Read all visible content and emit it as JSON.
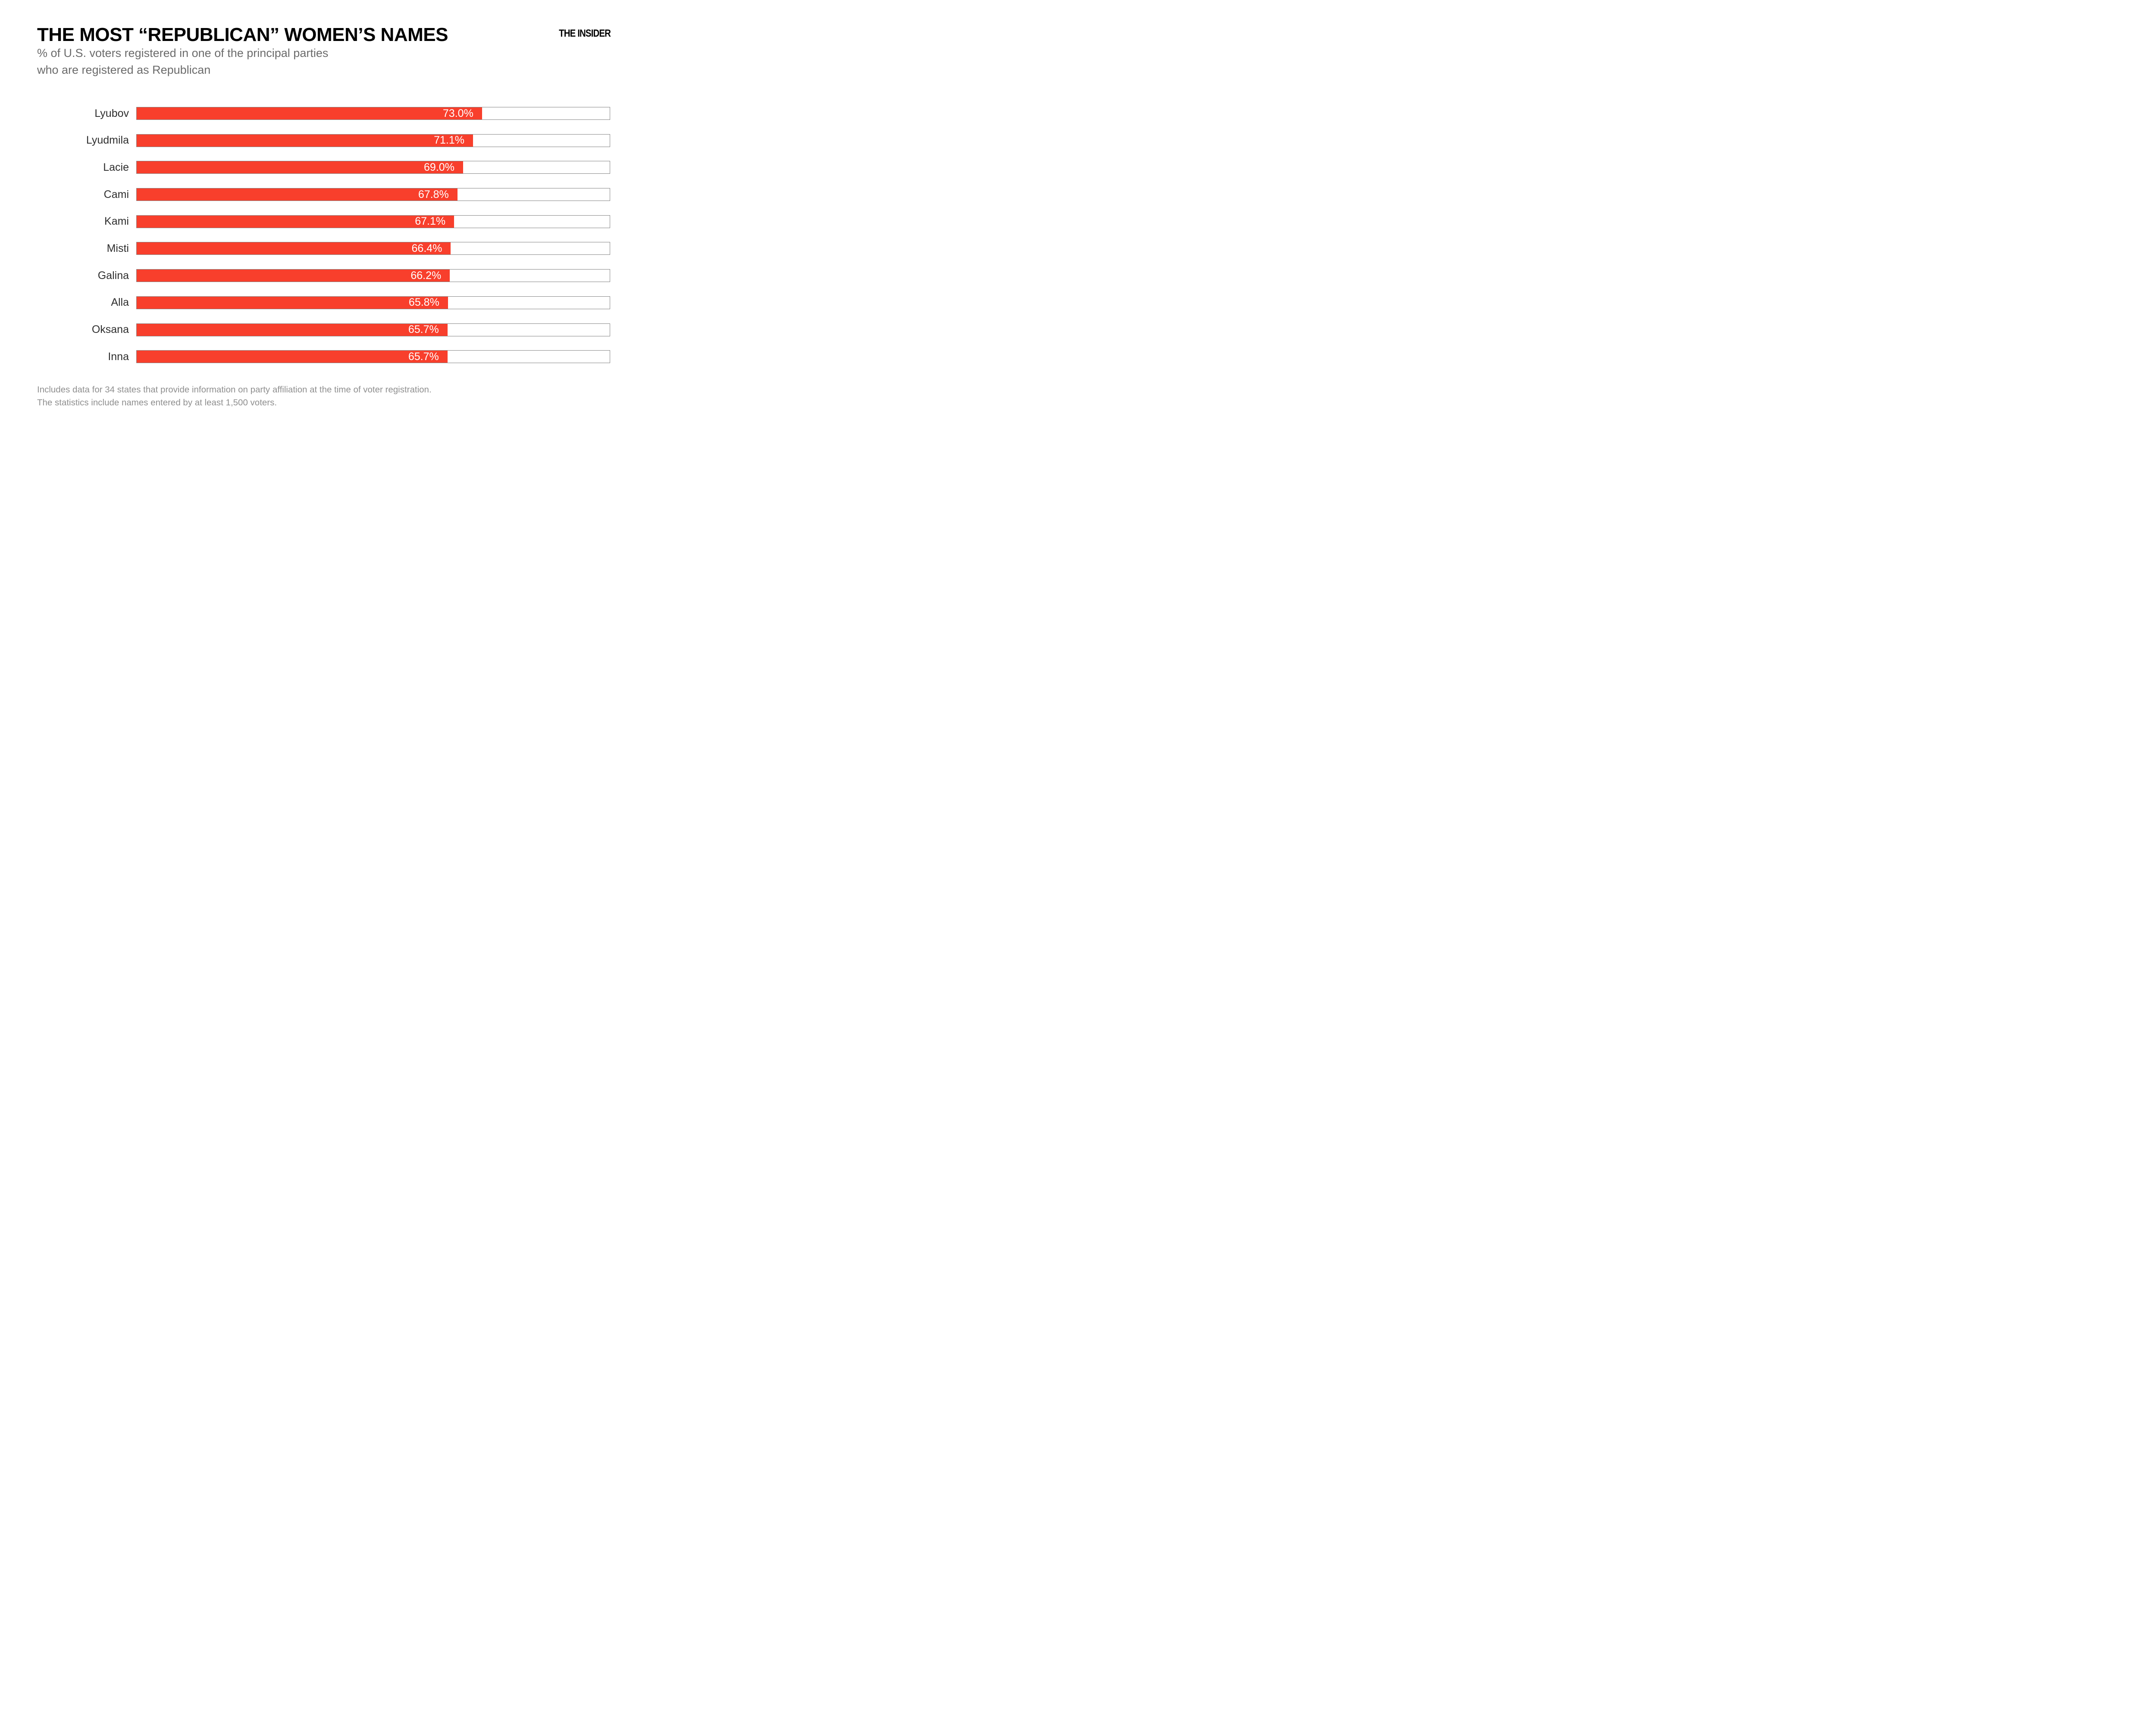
{
  "header": {
    "title": "THE MOST “REPUBLICAN” WOMEN’S NAMES",
    "subtitle_line1": "% of U.S. voters registered in one of the principal parties",
    "subtitle_line2": "who are registered as Republican",
    "logo": "THE INSIDER"
  },
  "chart_data": {
    "type": "bar",
    "orientation": "horizontal",
    "title": "THE MOST “REPUBLICAN” WOMEN’S NAMES",
    "subtitle": "% of U.S. voters registered in one of the principal parties who are registered as Republican",
    "categories": [
      "Lyubov",
      "Lyudmila",
      "Lacie",
      "Cami",
      "Kami",
      "Misti",
      "Galina",
      "Alla",
      "Oksana",
      "Inna"
    ],
    "values": [
      73.0,
      71.1,
      69.0,
      67.8,
      67.1,
      66.4,
      66.2,
      65.8,
      65.7,
      65.7
    ],
    "value_labels": [
      "73.0%",
      "71.1%",
      "69.0%",
      "67.8%",
      "67.1%",
      "66.4%",
      "66.2%",
      "65.8%",
      "65.7%",
      "65.7%"
    ],
    "xlim": [
      0,
      100
    ],
    "grid": false,
    "legend": false,
    "value_label_position": "inside-right",
    "bar_color": "#f83f2c",
    "track_border_color": "#858585",
    "track_fill_color": "#ffffff",
    "value_text_color": "#ffffff",
    "category_text_color": "#2e2e2e"
  },
  "footer": {
    "line1": "Includes data for 34 states that provide information on party affiliation at the time of voter registration.",
    "line2": "The statistics include names entered by at least 1,500 voters."
  }
}
